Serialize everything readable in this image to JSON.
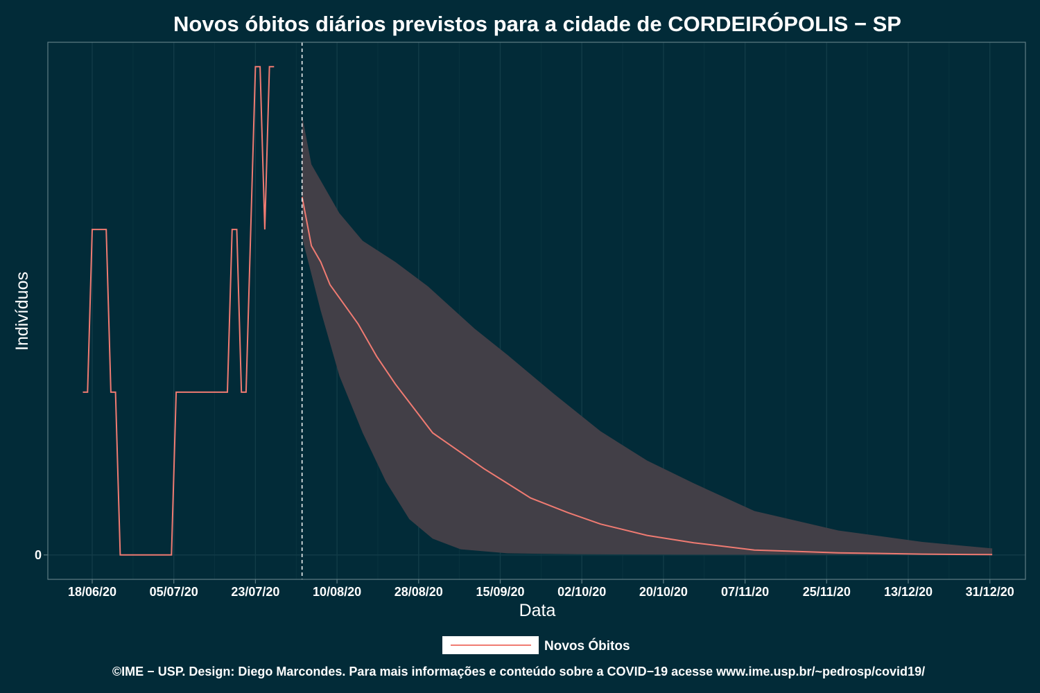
{
  "chart_data": {
    "type": "line",
    "title": "Novos óbitos diários previstos para a cidade de CORDEIRÓPOLIS − SP",
    "xlabel": "Data",
    "ylabel": "Indivíduos",
    "x_tick_labels": [
      "18/06/20",
      "05/07/20",
      "23/07/20",
      "10/08/20",
      "28/08/20",
      "15/09/20",
      "02/10/20",
      "20/10/20",
      "07/11/20",
      "25/11/20",
      "13/12/20",
      "31/12/20"
    ],
    "y_tick_labels": [
      "0"
    ],
    "ylim": [
      -0.15,
      3.15
    ],
    "grid": true,
    "forecast_start": "2020-08-02",
    "legend": {
      "position": "bottom",
      "entries": [
        "Novos Óbitos"
      ]
    },
    "caption": "©IME − USP. Design: Diego Marcondes. Para mais informações e conteúdo sobre a COVID−19 acesse www.ime.usp.br/~pedrosp/covid19/",
    "colors": {
      "background": "#022b38",
      "line": "#f07b72",
      "band": "#423f47",
      "grid": "#123c48",
      "panel_border": "#607e86",
      "legend_key": "#ffffff"
    },
    "observed": {
      "name": "Novos Óbitos",
      "points": [
        [
          "2020-06-16",
          1
        ],
        [
          "2020-06-17",
          1
        ],
        [
          "2020-06-18",
          2
        ],
        [
          "2020-06-21",
          2
        ],
        [
          "2020-06-22",
          1
        ],
        [
          "2020-06-23",
          1
        ],
        [
          "2020-06-24",
          0
        ],
        [
          "2020-07-05",
          0
        ],
        [
          "2020-07-06",
          1
        ],
        [
          "2020-07-17",
          1
        ],
        [
          "2020-07-18",
          2
        ],
        [
          "2020-07-19",
          2
        ],
        [
          "2020-07-20",
          1
        ],
        [
          "2020-07-21",
          1
        ],
        [
          "2020-07-23",
          3
        ],
        [
          "2020-07-24",
          3
        ],
        [
          "2020-07-25",
          2
        ],
        [
          "2020-07-26",
          3
        ],
        [
          "2020-07-27",
          3
        ]
      ]
    },
    "forecast": {
      "mean": [
        [
          "2020-08-02",
          2.2
        ],
        [
          "2020-08-04",
          1.9
        ],
        [
          "2020-08-06",
          1.8
        ],
        [
          "2020-08-08",
          1.66
        ],
        [
          "2020-08-10",
          1.58
        ],
        [
          "2020-08-14",
          1.42
        ],
        [
          "2020-08-18",
          1.22
        ],
        [
          "2020-08-22",
          1.05
        ],
        [
          "2020-08-26",
          0.9
        ],
        [
          "2020-08-30",
          0.75
        ],
        [
          "2020-09-04",
          0.65
        ],
        [
          "2020-09-10",
          0.53
        ],
        [
          "2020-09-15",
          0.44
        ],
        [
          "2020-09-20",
          0.35
        ],
        [
          "2020-09-28",
          0.26
        ],
        [
          "2020-10-05",
          0.19
        ],
        [
          "2020-10-15",
          0.12
        ],
        [
          "2020-10-25",
          0.075
        ],
        [
          "2020-11-07",
          0.03
        ],
        [
          "2020-11-25",
          0.013
        ],
        [
          "2020-12-13",
          0.005
        ],
        [
          "2020-12-28",
          0.002
        ]
      ],
      "upper": [
        [
          "2020-08-02",
          2.7
        ],
        [
          "2020-08-04",
          2.4
        ],
        [
          "2020-08-10",
          2.1
        ],
        [
          "2020-08-15",
          1.93
        ],
        [
          "2020-08-22",
          1.8
        ],
        [
          "2020-08-29",
          1.65
        ],
        [
          "2020-09-08",
          1.39
        ],
        [
          "2020-09-15",
          1.23
        ],
        [
          "2020-09-25",
          0.99
        ],
        [
          "2020-10-05",
          0.76
        ],
        [
          "2020-10-15",
          0.58
        ],
        [
          "2020-10-25",
          0.44
        ],
        [
          "2020-11-07",
          0.27
        ],
        [
          "2020-11-25",
          0.15
        ],
        [
          "2020-12-13",
          0.08
        ],
        [
          "2020-12-28",
          0.04
        ]
      ],
      "lower": [
        [
          "2020-08-02",
          1.95
        ],
        [
          "2020-08-06",
          1.5
        ],
        [
          "2020-08-10",
          1.1
        ],
        [
          "2020-08-15",
          0.75
        ],
        [
          "2020-08-20",
          0.45
        ],
        [
          "2020-08-25",
          0.22
        ],
        [
          "2020-08-30",
          0.1
        ],
        [
          "2020-09-05",
          0.035
        ],
        [
          "2020-09-15",
          0.01
        ],
        [
          "2020-09-30",
          0.004
        ],
        [
          "2020-10-20",
          0.002
        ],
        [
          "2020-12-28",
          0.001
        ]
      ]
    }
  }
}
